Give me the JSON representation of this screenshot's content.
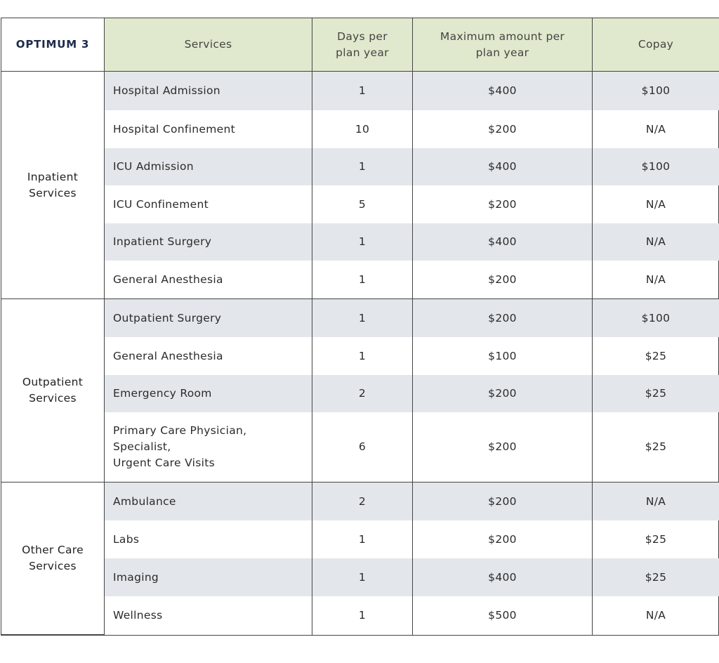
{
  "table": {
    "brand": "OPTIMUM 3",
    "headers": [
      "Services",
      "Days per\nplan year",
      "Maximum amount per\nplan year",
      "Copay"
    ],
    "groups": [
      {
        "label": "Inpatient\nServices",
        "rows": [
          [
            "Hospital Admission",
            "1",
            "$400",
            "$100"
          ],
          [
            "Hospital Confinement",
            "10",
            "$200",
            "N/A"
          ],
          [
            "ICU Admission",
            "1",
            "$400",
            "$100"
          ],
          [
            "ICU Confinement",
            "5",
            "$200",
            "N/A"
          ],
          [
            "Inpatient Surgery",
            "1",
            "$400",
            "N/A"
          ],
          [
            "General Anesthesia",
            "1",
            "$200",
            "N/A"
          ]
        ]
      },
      {
        "label": "Outpatient\nServices",
        "rows": [
          [
            "Outpatient Surgery",
            "1",
            "$200",
            "$100"
          ],
          [
            "General Anesthesia",
            "1",
            "$100",
            "$25"
          ],
          [
            "Emergency Room",
            "2",
            "$200",
            "$25"
          ],
          [
            "Primary Care Physician,\nSpecialist,\nUrgent Care Visits",
            "6",
            "$200",
            "$25"
          ]
        ]
      },
      {
        "label": "Other Care\nServices",
        "rows": [
          [
            "Ambulance",
            "2",
            "$200",
            "N/A"
          ],
          [
            "Labs",
            "1",
            "$200",
            "$25"
          ],
          [
            "Imaging",
            "1",
            "$400",
            "$25"
          ],
          [
            "Wellness",
            "1",
            "$500",
            "N/A"
          ]
        ]
      }
    ]
  }
}
